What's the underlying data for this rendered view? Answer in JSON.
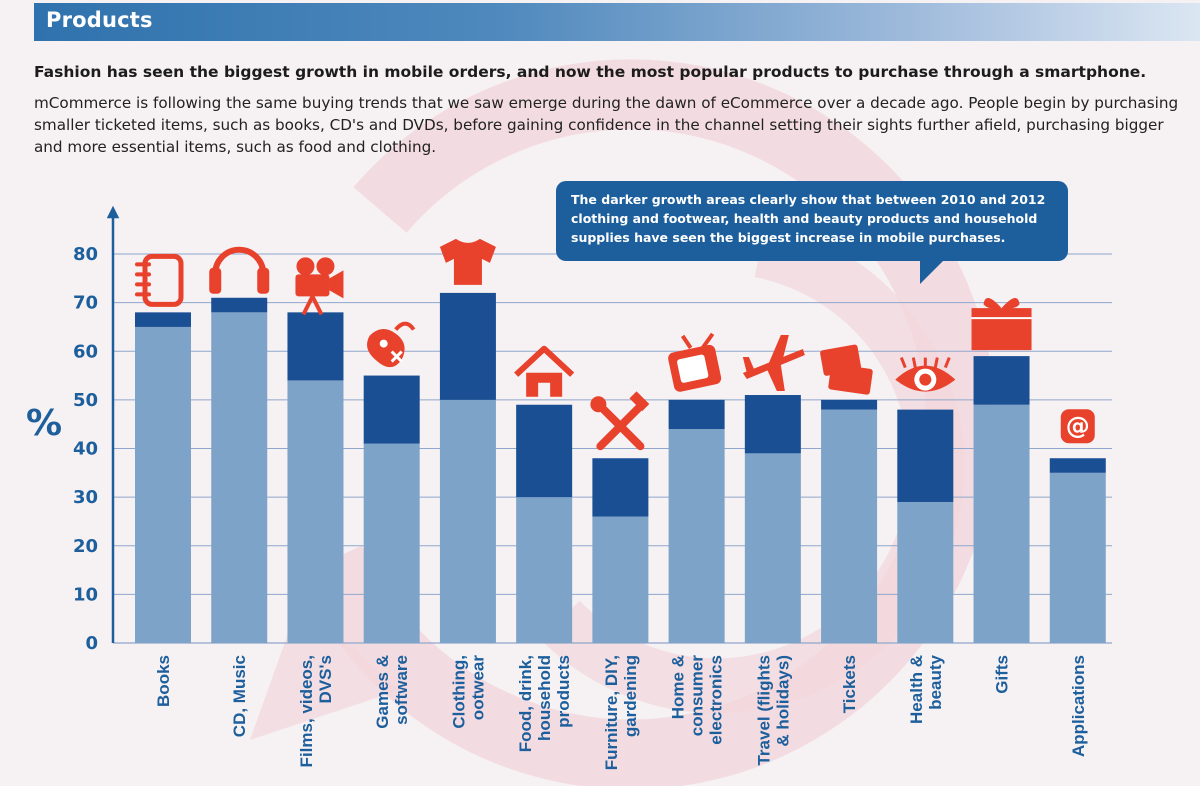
{
  "header": {
    "title": "Products"
  },
  "headline": "Fashion has seen the biggest growth in mobile orders, and now the most popular products to purchase through a smartphone.",
  "body_text": "mCommerce is following the same buying trends that we saw emerge during the dawn of eCommerce over a decade ago. People begin by purchasing smaller ticketed items, such as books, CD's and DVDs, before gaining confidence in the channel setting their sights further afield, purchasing bigger and more essential items, such as food and clothing.",
  "callout": "The darker growth areas clearly show that between 2010 and 2012 clothing and footwear, health and beauty products and household supplies have seen the biggest increase in mobile purchases.",
  "colors": {
    "accent_blue": "#1d5f9c",
    "bar_light": "#7ea3c8",
    "bar_dark": "#1b4f94",
    "icon_red": "#e8412c"
  },
  "chart_data": {
    "type": "bar",
    "stacked": true,
    "ylabel": "%",
    "ylim": [
      0,
      80
    ],
    "yticks": [
      0,
      10,
      20,
      30,
      40,
      50,
      60,
      70,
      80
    ],
    "grid": true,
    "categories": [
      [
        "Books"
      ],
      [
        "CD, Music"
      ],
      [
        "Films, videos,",
        "DVS's"
      ],
      [
        "Games &",
        "software"
      ],
      [
        "Clothing,",
        "ootwear"
      ],
      [
        "Food, drink,",
        "household",
        "products"
      ],
      [
        "Furniture, DIY,",
        "gardening"
      ],
      [
        "Home &",
        "consumer",
        "electronics"
      ],
      [
        "Travel (flights",
        "& holidays)"
      ],
      [
        "Tickets"
      ],
      [
        "Health &",
        "beauty"
      ],
      [
        "Gifts"
      ],
      [
        "Applications"
      ]
    ],
    "icons": [
      "notebook-icon",
      "headphones-icon",
      "movie-camera-icon",
      "gamepad-icon",
      "tshirt-icon",
      "house-icon",
      "tools-icon",
      "tv-icon",
      "airplane-icon",
      "tickets-icon",
      "eye-icon",
      "gift-icon",
      "at-sign-icon"
    ],
    "series": [
      {
        "values": [
          65,
          68,
          54,
          41,
          50,
          30,
          26,
          44,
          39,
          48,
          29,
          49,
          35
        ]
      },
      {
        "values": [
          3,
          3,
          14,
          14,
          22,
          19,
          12,
          6,
          12,
          2,
          19,
          10,
          3
        ]
      }
    ]
  }
}
